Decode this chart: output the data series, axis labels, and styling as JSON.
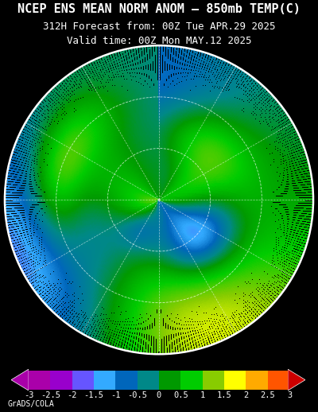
{
  "title_line1": "NCEP ENS MEAN NORM ANOM – 850mb TEMP(C)",
  "title_line2": "312H Forecast from: 00Z Tue APR.29 2025",
  "title_line3": "Valid time: 00Z Mon MAY.12 2025",
  "credit": "GrADS/COLA",
  "bg_color": "#000000",
  "colorbar_values": [
    -3,
    -2.5,
    -2,
    -1.5,
    -1,
    -0.5,
    0,
    0.5,
    1,
    1.5,
    2,
    2.5,
    3
  ],
  "cb_colors": [
    "#aa00aa",
    "#9900cc",
    "#6655ff",
    "#33aaff",
    "#0066bb",
    "#008888",
    "#009900",
    "#00cc00",
    "#88cc00",
    "#ffff00",
    "#ffaa00",
    "#ff5500",
    "#cc0000"
  ],
  "title_color": "#ffffff",
  "title_fontsize": 11,
  "subtitle_fontsize": 9,
  "credit_fontsize": 7,
  "fig_width": 4.0,
  "fig_height": 5.18
}
